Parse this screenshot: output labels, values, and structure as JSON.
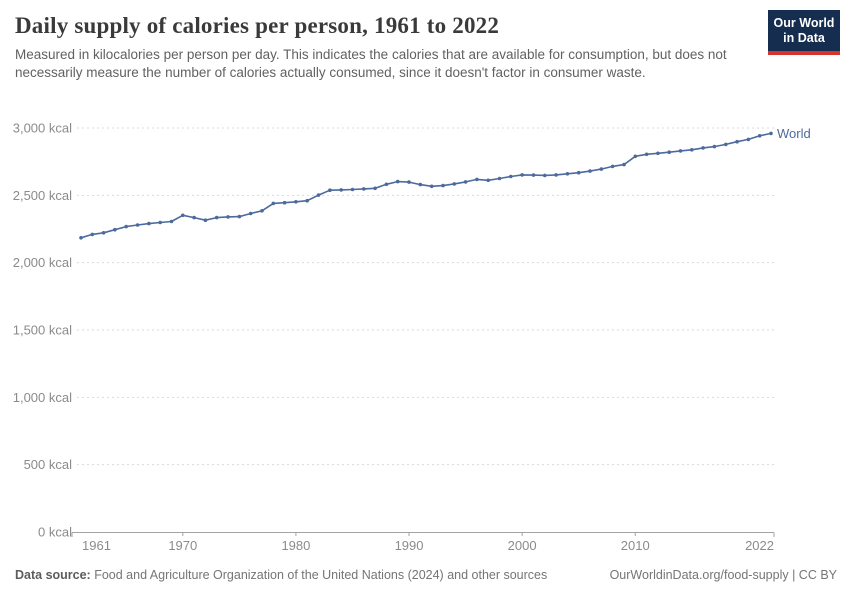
{
  "header": {
    "title": "Daily supply of calories per person, 1961 to 2022",
    "subtitle": "Measured in kilocalories per person per day. This indicates the calories that are available for consumption, but does not necessarily measure the number of calories actually consumed, since it doesn't factor in consumer waste.",
    "logo": {
      "line1": "Our World",
      "line2": "in Data"
    }
  },
  "chart_data": {
    "type": "line",
    "title": "Daily supply of calories per person, 1961 to 2022",
    "xlabel": "",
    "ylabel": "",
    "xlim": [
      1961,
      2022
    ],
    "ylim": [
      0,
      3000
    ],
    "grid": "horizontal-dashed",
    "legend_position": "end-of-line",
    "x_ticks": [
      1961,
      1970,
      1980,
      1990,
      2000,
      2010,
      2022
    ],
    "x_tick_labels": [
      "1961",
      "1970",
      "1980",
      "1990",
      "2000",
      "2010",
      "2022"
    ],
    "y_ticks": [
      0,
      500,
      1000,
      1500,
      2000,
      2500,
      3000
    ],
    "y_tick_labels": [
      "0 kcal",
      "500 kcal",
      "1,000 kcal",
      "1,500 kcal",
      "2,000 kcal",
      "2,500 kcal",
      "3,000 kcal"
    ],
    "series": [
      {
        "name": "World",
        "color": "#4C6A9C",
        "x": [
          1961,
          1962,
          1963,
          1964,
          1965,
          1966,
          1967,
          1968,
          1969,
          1970,
          1971,
          1972,
          1973,
          1974,
          1975,
          1976,
          1977,
          1978,
          1979,
          1980,
          1981,
          1982,
          1983,
          1984,
          1985,
          1986,
          1987,
          1988,
          1989,
          1990,
          1991,
          1992,
          1993,
          1994,
          1995,
          1996,
          1997,
          1998,
          1999,
          2000,
          2001,
          2002,
          2003,
          2004,
          2005,
          2006,
          2007,
          2008,
          2009,
          2010,
          2011,
          2012,
          2013,
          2014,
          2015,
          2016,
          2017,
          2018,
          2019,
          2020,
          2021,
          2022
        ],
        "values": [
          2185,
          2210,
          2222,
          2245,
          2268,
          2280,
          2290,
          2298,
          2306,
          2352,
          2335,
          2315,
          2335,
          2340,
          2342,
          2365,
          2385,
          2440,
          2445,
          2452,
          2460,
          2502,
          2538,
          2540,
          2543,
          2548,
          2552,
          2582,
          2602,
          2598,
          2580,
          2567,
          2572,
          2585,
          2600,
          2618,
          2612,
          2625,
          2640,
          2652,
          2650,
          2648,
          2652,
          2660,
          2668,
          2680,
          2695,
          2715,
          2728,
          2790,
          2805,
          2812,
          2820,
          2830,
          2838,
          2852,
          2862,
          2878,
          2898,
          2915,
          2942,
          2960
        ]
      }
    ]
  },
  "footer": {
    "source_label": "Data source:",
    "source_text": " Food and Agriculture Organization of the United Nations (2024) and other sources",
    "credit": "OurWorldinData.org/food-supply | CC BY"
  },
  "colors": {
    "line": "#4C6A9C",
    "grid": "#dadada",
    "axis": "#a3a3a3",
    "tick_label": "#8b8b8b",
    "title": "#3a3a3a",
    "subtitle": "#616161",
    "footer": "#757575",
    "logo_bg": "#152D4F",
    "logo_red": "#D7332F"
  }
}
